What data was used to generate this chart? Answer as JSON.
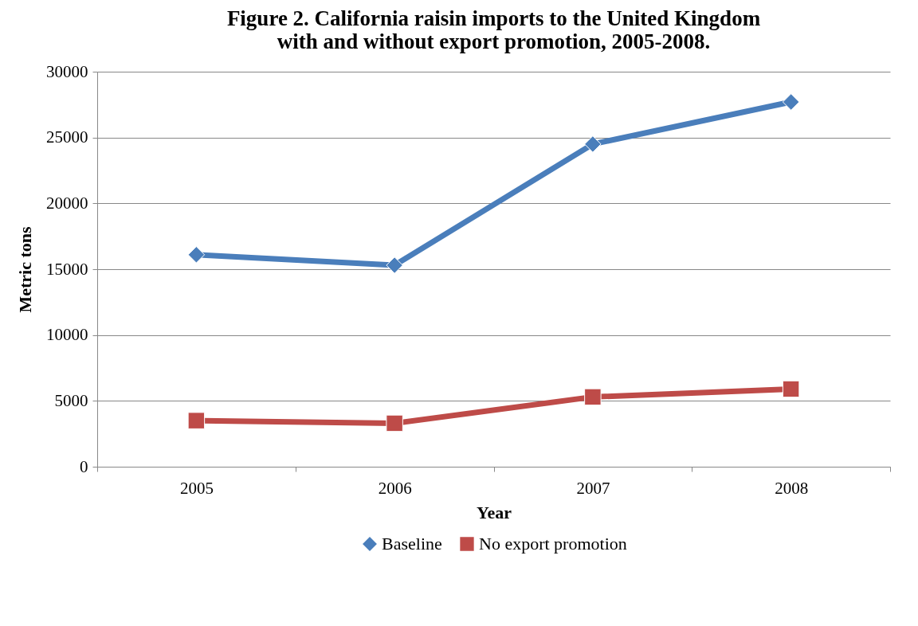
{
  "chart_data": {
    "type": "line",
    "title": "Figure 2.  California raisin imports to the United Kingdom with and without export promotion, 2005-2008.",
    "xlabel": "Year",
    "ylabel": "Metric tons",
    "categories": [
      "2005",
      "2006",
      "2007",
      "2008"
    ],
    "series": [
      {
        "name": "Baseline",
        "color": "#4a7ebb",
        "marker": "diamond",
        "values": [
          16100,
          15300,
          24500,
          27700
        ]
      },
      {
        "name": "No export promotion",
        "color": "#be4b48",
        "marker": "square",
        "values": [
          3500,
          3300,
          5300,
          5900
        ]
      }
    ],
    "ylim": [
      0,
      30000
    ],
    "yticks": [
      0,
      5000,
      10000,
      15000,
      20000,
      25000,
      30000
    ],
    "grid": "y",
    "legend": "bottom",
    "line_style": "solid"
  }
}
